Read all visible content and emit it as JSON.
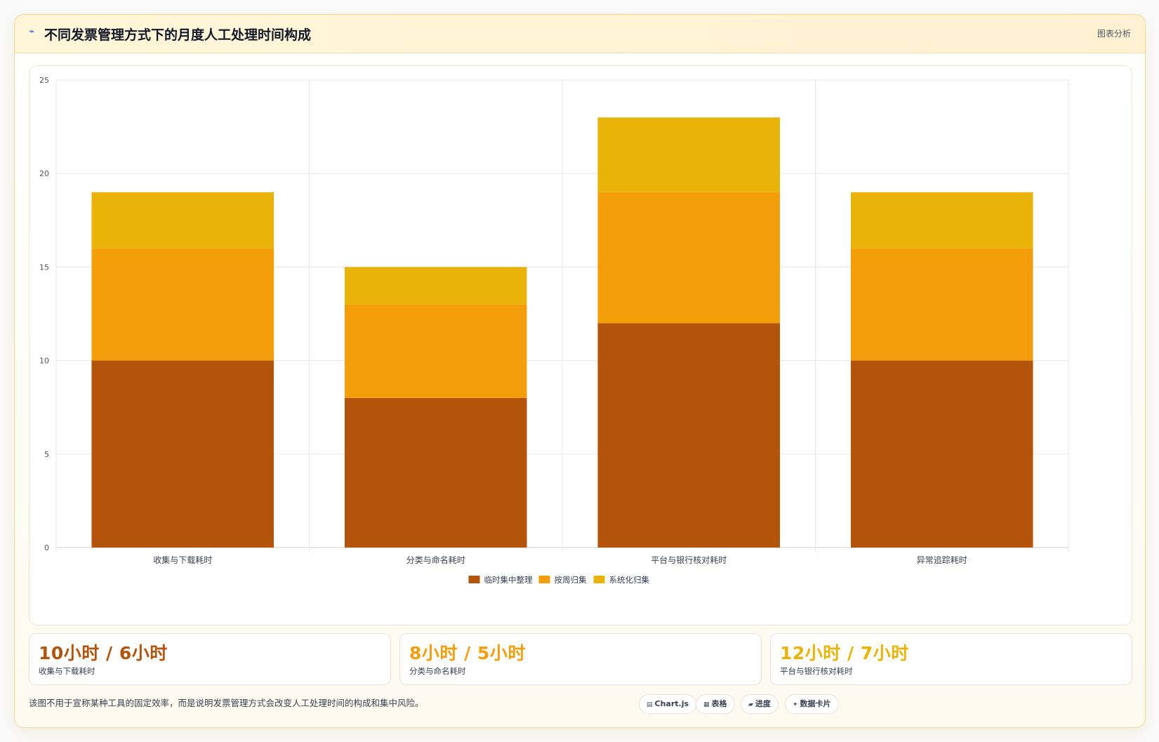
{
  "header": {
    "logo_icon": "chart-line-icon",
    "title": "不同发票管理方式下的月度人工处理时间构成",
    "tag": "图表分析"
  },
  "chart_data": {
    "type": "bar",
    "stacked": true,
    "categories": [
      "收集与下载耗时",
      "分类与命名耗时",
      "平台与银行核对耗时",
      "异常追踪耗时"
    ],
    "series": [
      {
        "name": "临时集中整理",
        "values": [
          10,
          8,
          12,
          10
        ],
        "color": "#b4530a"
      },
      {
        "name": "按周归集",
        "values": [
          6,
          5,
          7,
          6
        ],
        "color": "#f59e0b"
      },
      {
        "name": "系统化归集",
        "values": [
          3,
          2,
          4,
          3
        ],
        "color": "#eab308"
      }
    ],
    "ylim": [
      0,
      25
    ],
    "yticks": [
      0,
      5,
      10,
      15,
      20,
      25
    ],
    "grid": true,
    "legend": "bottom",
    "xlabel": "",
    "ylabel": ""
  },
  "stats": [
    {
      "value": "10小时 / 6小时",
      "label": "收集与下载耗时",
      "color": "#b4530a"
    },
    {
      "value": "8小时 / 5小时",
      "label": "分类与命名耗时",
      "color": "#f59e0b"
    },
    {
      "value": "12小时 / 7小时",
      "label": "平台与银行核对耗时",
      "color": "#eab308"
    }
  ],
  "note": "该图不用于宣称某种工具的固定效率，而是说明发票管理方式会改变人工处理时间的构成和集中风险。",
  "chips": [
    {
      "icon": "chart-icon",
      "glyph": "▤",
      "label": "Chart.js"
    },
    {
      "icon": "table-icon",
      "glyph": "▦",
      "label": "表格"
    },
    {
      "icon": "progress-icon",
      "glyph": "▰",
      "label": "进度"
    },
    {
      "icon": "data-card-icon",
      "glyph": "✦",
      "label": "数据卡片"
    }
  ]
}
